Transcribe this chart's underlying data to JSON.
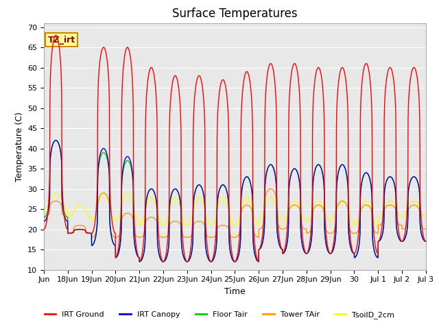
{
  "title": "Surface Temperatures",
  "xlabel": "Time",
  "ylabel": "Temperature (C)",
  "ylim": [
    10,
    71
  ],
  "yticks": [
    10,
    15,
    20,
    25,
    30,
    35,
    40,
    45,
    50,
    55,
    60,
    65,
    70
  ],
  "legend_label": "TZ_irt",
  "legend_entries": [
    "IRT Ground",
    "IRT Canopy",
    "Floor Tair",
    "Tower TAir",
    "TsoilD_2cm"
  ],
  "line_colors": [
    "#ff0000",
    "#0000cc",
    "#00cc00",
    "#ff9900",
    "#ffff00"
  ],
  "background_color": "#e8e8e8",
  "title_fontsize": 12,
  "axis_fontsize": 9,
  "tick_fontsize": 8,
  "xtick_labels": [
    "Jun",
    "18Jun",
    "19Jun",
    "20Jun",
    "21Jun",
    "22Jun",
    "23Jun",
    "24Jun",
    "25Jun",
    "26Jun",
    "27Jun",
    "28Jun",
    "29Jun",
    "30",
    "Jul 1",
    "Jul 2",
    "Jul 3"
  ],
  "num_days": 16,
  "points_per_day": 144,
  "irt_ground_peaks": [
    68,
    20,
    65,
    65,
    60,
    58,
    58,
    57,
    59,
    61,
    61,
    60,
    60,
    61,
    60,
    60
  ],
  "irt_ground_mins": [
    20,
    19,
    19,
    13,
    12,
    12,
    12,
    12,
    12,
    15,
    14,
    14,
    14,
    14,
    17,
    17
  ],
  "canopy_peaks": [
    42,
    20,
    40,
    38,
    30,
    30,
    31,
    31,
    33,
    36,
    35,
    36,
    36,
    34,
    33,
    33
  ],
  "canopy_mins": [
    22,
    19,
    16,
    13,
    12,
    12,
    12,
    12,
    12,
    15,
    14,
    14,
    14,
    13,
    17,
    17
  ],
  "floor_peaks": [
    42,
    20,
    39,
    37,
    30,
    30,
    31,
    31,
    33,
    36,
    35,
    36,
    36,
    34,
    33,
    33
  ],
  "floor_mins": [
    23,
    19,
    16,
    13,
    12,
    12,
    12,
    12,
    12,
    15,
    14,
    14,
    14,
    13,
    17,
    17
  ],
  "tower_peaks": [
    27,
    21,
    29,
    24,
    23,
    22,
    22,
    21,
    26,
    30,
    26,
    26,
    27,
    26,
    26,
    26
  ],
  "tower_mins": [
    23,
    19,
    18,
    18,
    18,
    18,
    18,
    18,
    18,
    20,
    20,
    19,
    19,
    19,
    21,
    20
  ],
  "soil_peaks": [
    29,
    26,
    29,
    29,
    28,
    28,
    28,
    28,
    28,
    28,
    27,
    27,
    27,
    27,
    27,
    27
  ],
  "soil_mins": [
    25,
    23,
    22,
    22,
    21,
    21,
    21,
    21,
    21,
    22,
    22,
    22,
    22,
    21,
    23,
    23
  ],
  "peak_sharpness": 3.5,
  "soil_sharpness": 1.2
}
